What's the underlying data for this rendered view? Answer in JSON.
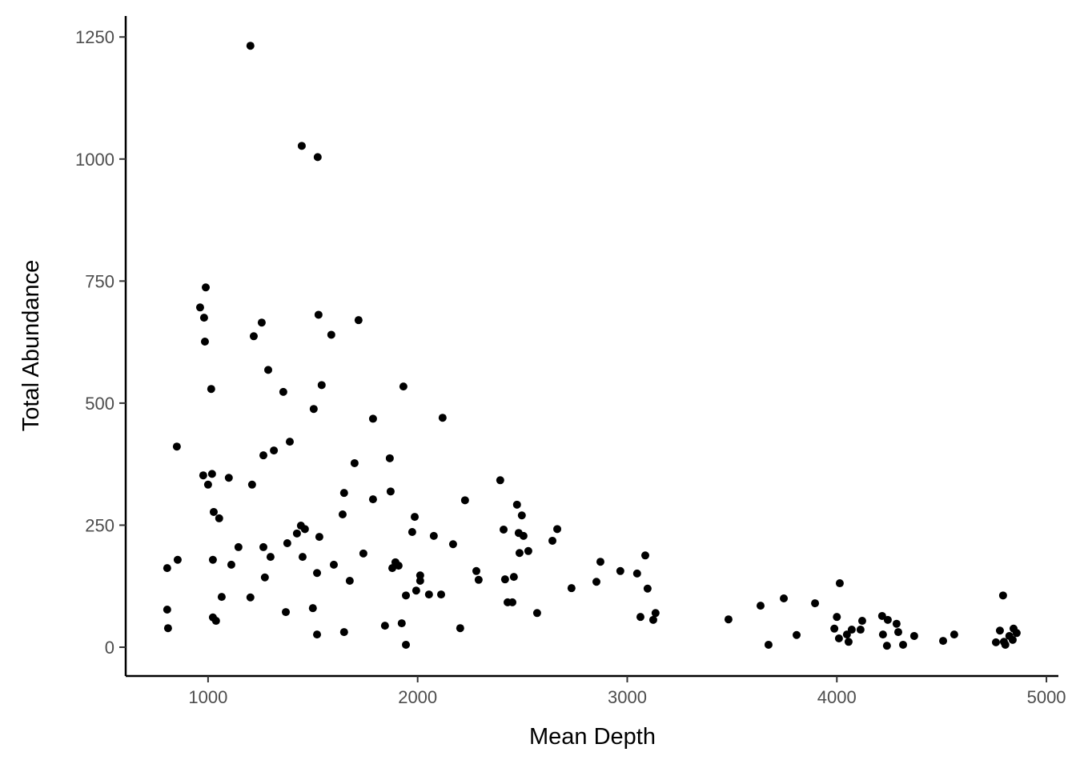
{
  "chart_data": {
    "type": "scatter",
    "x_label": "Mean Depth",
    "y_label": "Total Abundance",
    "color": "#000000",
    "xlim": [
      607,
      5057
    ],
    "ylim": [
      -59,
      1293
    ],
    "xticks": [
      1000,
      2000,
      3000,
      4000,
      5000
    ],
    "yticks": [
      0,
      250,
      500,
      750,
      1000,
      1250
    ],
    "x": [
      1202,
      1447,
      1523,
      989,
      962,
      981,
      985,
      1256,
      1527,
      1718,
      1218,
      1588,
      1287,
      1015,
      1359,
      1542,
      1504,
      1932,
      1787,
      2119,
      851,
      1390,
      1314,
      1264,
      1699,
      1867,
      977,
      1019,
      1099,
      1000,
      1210,
      1649,
      1871,
      2394,
      1027,
      1053,
      1787,
      2226,
      1642,
      2474,
      1986,
      2497,
      1443,
      1462,
      1424,
      1531,
      1974,
      2077,
      2410,
      2482,
      2505,
      2666,
      2643,
      2169,
      1145,
      1264,
      1378,
      1741,
      2486,
      2528,
      3086,
      805,
      855,
      1023,
      1298,
      1451,
      1111,
      1600,
      1894,
      1879,
      1909,
      2872,
      2280,
      2967,
      3047,
      1520,
      1271,
      1676,
      2012,
      2012,
      2291,
      2417,
      2459,
      2853,
      4014,
      1993,
      2734,
      3097,
      1065,
      1202,
      1944,
      2054,
      2112,
      4793,
      2429,
      2452,
      3747,
      3896,
      3636,
      805,
      1500,
      1371,
      2570,
      3135,
      3063,
      3124,
      1023,
      1038,
      3483,
      4000,
      4216,
      4243,
      4121,
      1924,
      1844,
      4285,
      809,
      2203,
      3988,
      4071,
      4113,
      4778,
      4843,
      1520,
      1649,
      3808,
      4048,
      4220,
      4293,
      4369,
      4560,
      4858,
      4823,
      4010,
      4056,
      4507,
      4759,
      4797,
      4839,
      4804,
      1944,
      3674,
      4239,
      4316
    ],
    "y": [
      1232,
      1027,
      1004,
      737,
      696,
      675,
      626,
      665,
      681,
      670,
      637,
      640,
      568,
      529,
      523,
      537,
      488,
      534,
      468,
      470,
      411,
      421,
      403,
      393,
      377,
      387,
      352,
      355,
      347,
      333,
      333,
      316,
      319,
      342,
      277,
      264,
      303,
      301,
      272,
      292,
      267,
      270,
      249,
      242,
      233,
      226,
      236,
      228,
      241,
      234,
      228,
      242,
      218,
      211,
      205,
      205,
      213,
      192,
      193,
      197,
      188,
      162,
      179,
      179,
      185,
      185,
      169,
      169,
      174,
      162,
      167,
      175,
      156,
      156,
      151,
      152,
      143,
      136,
      147,
      136,
      138,
      139,
      144,
      134,
      131,
      116,
      121,
      120,
      103,
      102,
      106,
      108,
      108,
      106,
      92,
      92,
      100,
      90,
      85,
      77,
      80,
      72,
      70,
      70,
      62,
      56,
      61,
      54,
      57,
      62,
      64,
      56,
      54,
      49,
      44,
      48,
      39,
      39,
      38,
      36,
      36,
      34,
      38,
      26,
      31,
      25,
      26,
      26,
      31,
      23,
      26,
      29,
      23,
      18,
      11,
      13,
      10,
      11,
      15,
      5,
      5,
      5,
      3,
      5
    ]
  }
}
